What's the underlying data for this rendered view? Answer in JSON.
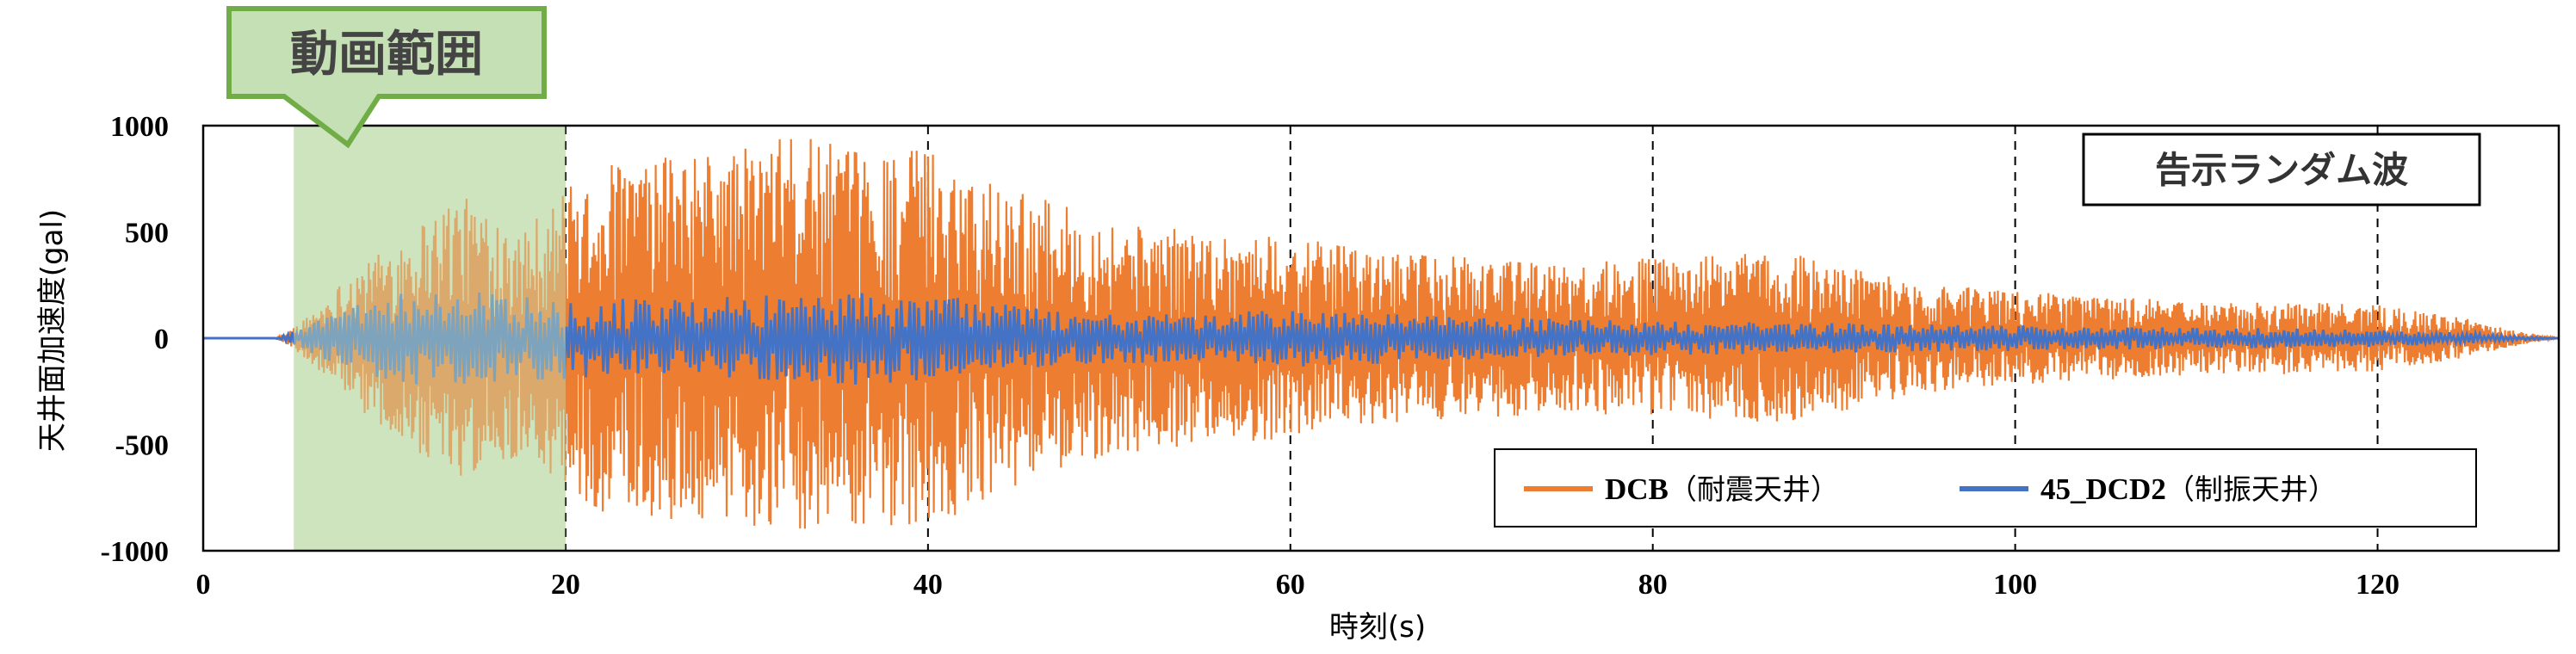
{
  "chart_data": {
    "type": "line",
    "xlabel": "時刻(s)",
    "ylabel": "天井面加速度(gal)",
    "xlim": [
      0,
      130
    ],
    "ylim": [
      -1000,
      1000
    ],
    "x_ticks": [
      0,
      20,
      40,
      60,
      80,
      100,
      120
    ],
    "y_ticks": [
      1000,
      500,
      0,
      -500,
      -1000
    ],
    "grid": "vertical dashed at 20,40,60,80,100,120",
    "annotation_box": "告示ランダム波",
    "highlight_range": {
      "label": "動画範囲",
      "from": 5,
      "to": 20,
      "color": "#c5e0b4"
    },
    "legend_position": "bottom-right",
    "series": [
      {
        "name": "DCB（耐震天井）",
        "color": "#ed7d31",
        "envelope_x": [
          0,
          4,
          5,
          6,
          8,
          10,
          12,
          14,
          16,
          18,
          20,
          22,
          25,
          30,
          33,
          36,
          40,
          45,
          50,
          55,
          60,
          65,
          70,
          75,
          80,
          85,
          88,
          90,
          95,
          100,
          105,
          110,
          115,
          120,
          125,
          128,
          130
        ],
        "envelope_peak": [
          0,
          0,
          50,
          120,
          300,
          420,
          560,
          680,
          600,
          550,
          700,
          820,
          850,
          900,
          960,
          880,
          900,
          700,
          550,
          500,
          480,
          400,
          380,
          350,
          380,
          400,
          400,
          350,
          260,
          220,
          200,
          170,
          170,
          160,
          90,
          30,
          0
        ]
      },
      {
        "name": "45_DCD2（制振天井）",
        "color": "#4472c4",
        "envelope_x": [
          0,
          4,
          5,
          6,
          8,
          10,
          12,
          14,
          16,
          18,
          20,
          25,
          30,
          35,
          40,
          45,
          50,
          55,
          60,
          70,
          80,
          90,
          100,
          110,
          120,
          125,
          128,
          130
        ],
        "envelope_peak": [
          0,
          0,
          30,
          80,
          150,
          200,
          220,
          230,
          220,
          200,
          200,
          180,
          200,
          220,
          210,
          150,
          120,
          110,
          140,
          100,
          80,
          70,
          60,
          50,
          40,
          25,
          10,
          0
        ]
      }
    ]
  }
}
